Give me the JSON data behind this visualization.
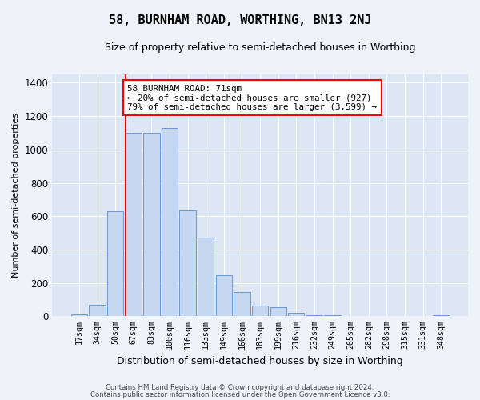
{
  "title": "58, BURNHAM ROAD, WORTHING, BN13 2NJ",
  "subtitle": "Size of property relative to semi-detached houses in Worthing",
  "xlabel": "Distribution of semi-detached houses by size in Worthing",
  "ylabel": "Number of semi-detached properties",
  "categories": [
    "17sqm",
    "34sqm",
    "50sqm",
    "67sqm",
    "83sqm",
    "100sqm",
    "116sqm",
    "133sqm",
    "149sqm",
    "166sqm",
    "183sqm",
    "199sqm",
    "216sqm",
    "232sqm",
    "249sqm",
    "265sqm",
    "282sqm",
    "298sqm",
    "315sqm",
    "331sqm",
    "348sqm"
  ],
  "values": [
    10,
    70,
    630,
    1100,
    1100,
    1130,
    635,
    470,
    245,
    145,
    65,
    55,
    22,
    8,
    5,
    3,
    2,
    1,
    0,
    0,
    5
  ],
  "bar_color": "#c5d8f0",
  "bar_edge_color": "#5b8cc8",
  "annotation_text": "58 BURNHAM ROAD: 71sqm\n← 20% of semi-detached houses are smaller (927)\n79% of semi-detached houses are larger (3,599) →",
  "vline_x_index": 3,
  "ylim": [
    0,
    1450
  ],
  "yticks": [
    0,
    200,
    400,
    600,
    800,
    1000,
    1200,
    1400
  ],
  "fig_bg_color": "#eef2f9",
  "axes_bg_color": "#dde6f4",
  "grid_color": "#ffffff",
  "footer1": "Contains HM Land Registry data © Crown copyright and database right 2024.",
  "footer2": "Contains public sector information licensed under the Open Government Licence v3.0."
}
